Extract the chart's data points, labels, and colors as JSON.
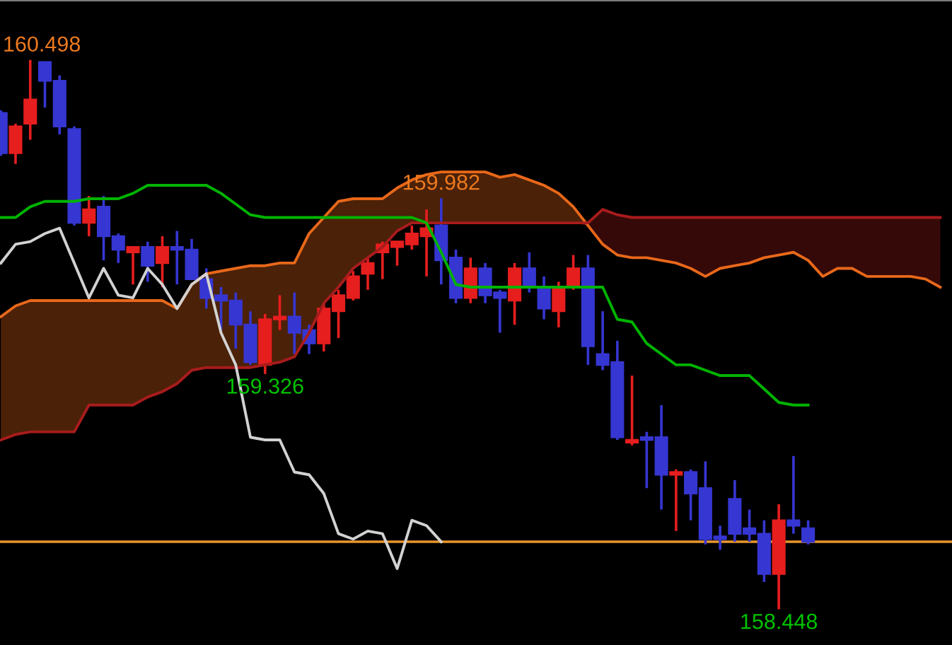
{
  "chart_data": {
    "type": "candlestick",
    "categories": [
      null,
      null,
      null,
      null,
      null,
      null,
      null,
      null,
      null,
      null,
      null,
      null,
      null,
      null,
      null,
      null,
      null,
      null,
      null,
      null,
      null,
      null,
      null,
      null,
      null,
      null,
      null,
      null,
      null,
      null,
      null,
      null,
      null,
      null,
      null,
      null,
      null,
      null,
      null,
      null,
      null,
      null,
      null,
      null,
      null,
      null,
      null,
      null,
      null,
      null,
      null,
      null,
      null,
      null,
      null,
      null,
      null,
      null,
      null,
      null,
      null,
      null,
      null,
      null,
      null
    ],
    "ohlc": [
      [
        160.3,
        160.31,
        160.14,
        160.15
      ],
      [
        160.15,
        160.26,
        160.11,
        160.25
      ],
      [
        160.26,
        160.498,
        160.2,
        160.35
      ],
      [
        160.49,
        160.49,
        160.32,
        160.42
      ],
      [
        160.42,
        160.44,
        160.22,
        160.25
      ],
      [
        160.24,
        160.25,
        159.88,
        159.89
      ],
      [
        159.89,
        159.99,
        159.84,
        159.94
      ],
      [
        159.95,
        159.99,
        159.75,
        159.84
      ],
      [
        159.84,
        159.85,
        159.74,
        159.79
      ],
      [
        159.78,
        159.8,
        159.66,
        159.8
      ],
      [
        159.8,
        159.82,
        159.67,
        159.73
      ],
      [
        159.74,
        159.84,
        159.65,
        159.8
      ],
      [
        159.8,
        159.86,
        159.66,
        159.79
      ],
      [
        159.79,
        159.83,
        159.68,
        159.68
      ],
      [
        159.68,
        159.72,
        159.57,
        159.61
      ],
      [
        159.62,
        159.65,
        159.49,
        159.6
      ],
      [
        159.6,
        159.63,
        159.42,
        159.51
      ],
      [
        159.51,
        159.56,
        159.36,
        159.37
      ],
      [
        159.36,
        159.55,
        159.326,
        159.53
      ],
      [
        159.53,
        159.62,
        159.49,
        159.54
      ],
      [
        159.54,
        159.63,
        159.4,
        159.48
      ],
      [
        159.49,
        159.51,
        159.4,
        159.44
      ],
      [
        159.44,
        159.59,
        159.41,
        159.57
      ],
      [
        159.56,
        159.64,
        159.46,
        159.62
      ],
      [
        159.61,
        159.71,
        159.6,
        159.69
      ],
      [
        159.7,
        159.76,
        159.64,
        159.74
      ],
      [
        159.78,
        159.82,
        159.68,
        159.81
      ],
      [
        159.8,
        159.82,
        159.73,
        159.82
      ],
      [
        159.81,
        159.88,
        159.79,
        159.85
      ],
      [
        159.84,
        159.94,
        159.69,
        159.87
      ],
      [
        159.88,
        159.982,
        159.66,
        159.75
      ],
      [
        159.76,
        159.79,
        159.59,
        159.61
      ],
      [
        159.61,
        159.76,
        159.59,
        159.72
      ],
      [
        159.72,
        159.74,
        159.59,
        159.62
      ],
      [
        159.63,
        159.64,
        159.48,
        159.61
      ],
      [
        159.6,
        159.74,
        159.51,
        159.72
      ],
      [
        159.72,
        159.78,
        159.63,
        159.65
      ],
      [
        159.65,
        159.69,
        159.53,
        159.57
      ],
      [
        159.56,
        159.67,
        159.5,
        159.65
      ],
      [
        159.65,
        159.77,
        159.64,
        159.72
      ],
      [
        159.72,
        159.77,
        159.36,
        159.43
      ],
      [
        159.4,
        159.56,
        159.34,
        159.36
      ],
      [
        159.37,
        159.45,
        159.08,
        159.09
      ],
      [
        159.07,
        159.32,
        159.06,
        159.08
      ],
      [
        159.09,
        159.11,
        158.9,
        159.08
      ],
      [
        159.09,
        159.21,
        158.82,
        158.95
      ],
      [
        158.95,
        158.97,
        158.74,
        158.96
      ],
      [
        158.96,
        158.97,
        158.78,
        158.88
      ],
      [
        158.9,
        159.0,
        158.69,
        158.71
      ],
      [
        158.72,
        158.76,
        158.67,
        158.71
      ],
      [
        158.86,
        158.93,
        158.7,
        158.73
      ],
      [
        158.75,
        158.82,
        158.7,
        158.73
      ],
      [
        158.73,
        158.78,
        158.55,
        158.58
      ],
      [
        158.58,
        158.84,
        158.448,
        158.78
      ],
      [
        158.78,
        159.02,
        158.73,
        158.76
      ],
      [
        158.75,
        158.78,
        158.69,
        158.7
      ],
      null,
      null,
      null,
      null,
      null,
      null,
      null,
      null,
      null
    ],
    "colors": [
      "#3636d2",
      "#e61e1e",
      "#e61e1e",
      "#3636d2",
      "#3636d2",
      "#3636d2",
      "#e61e1e",
      "#3636d2",
      "#3636d2",
      "#e61e1e",
      "#3636d2",
      "#e61e1e",
      "#3636d2",
      "#3636d2",
      "#3636d2",
      "#3636d2",
      "#3636d2",
      "#3636d2",
      "#e61e1e",
      "#e61e1e",
      "#3636d2",
      "#3636d2",
      "#e61e1e",
      "#e61e1e",
      "#e61e1e",
      "#e61e1e",
      "#e61e1e",
      "#e61e1e",
      "#e61e1e",
      "#e61e1e",
      "#3636d2",
      "#3636d2",
      "#e61e1e",
      "#3636d2",
      "#3636d2",
      "#e61e1e",
      "#3636d2",
      "#3636d2",
      "#e61e1e",
      "#e61e1e",
      "#3636d2",
      "#3636d2",
      "#3636d2",
      "#e61e1e",
      "#3636d2",
      "#3636d2",
      "#e61e1e",
      "#3636d2",
      "#3636d2",
      "#3636d2",
      "#3636d2",
      "#3636d2",
      "#3636d2",
      "#e61e1e",
      "#3636d2",
      "#3636d2",
      null,
      null,
      null,
      null,
      null,
      null,
      null,
      null,
      null
    ],
    "series": [
      {
        "type": "line",
        "color": "#e8681a",
        "values": [
          159.54,
          159.58,
          159.6,
          159.6,
          159.6,
          159.6,
          159.6,
          159.6,
          159.6,
          159.6,
          159.6,
          159.6,
          159.57,
          159.66,
          159.7,
          159.71,
          159.72,
          159.73,
          159.73,
          159.74,
          159.74,
          159.85,
          159.91,
          159.97,
          159.98,
          159.98,
          159.98,
          160.02,
          160.05,
          160.07,
          160.08,
          160.08,
          160.08,
          160.08,
          160.06,
          160.07,
          160.05,
          160.03,
          160.0,
          159.95,
          159.88,
          159.81,
          159.77,
          159.76,
          159.76,
          159.75,
          159.74,
          159.72,
          159.69,
          159.72,
          159.73,
          159.74,
          159.76,
          159.77,
          159.78,
          159.75,
          159.69,
          159.72,
          159.72,
          159.69,
          159.69,
          159.69,
          159.69,
          159.68,
          159.65
        ],
        "lower": [
          159.08,
          159.1,
          159.11,
          159.11,
          159.11,
          159.11,
          159.21,
          159.21,
          159.21,
          159.21,
          159.24,
          159.26,
          159.29,
          159.34,
          159.35,
          159.35,
          159.35,
          159.35,
          159.36,
          159.37,
          159.39,
          159.48,
          159.59,
          159.65,
          159.72,
          159.76,
          159.8,
          159.86,
          159.89,
          159.89,
          159.89,
          159.89,
          159.89,
          159.89,
          159.89,
          159.89,
          159.89,
          159.89,
          159.89,
          159.89,
          159.88,
          159.81,
          159.77,
          159.76,
          159.76,
          159.75,
          159.74,
          159.72,
          159.69,
          159.72,
          159.73,
          159.74,
          159.76,
          159.77,
          159.78,
          159.75,
          159.69,
          159.72,
          159.72,
          159.69,
          159.69,
          159.69,
          159.69,
          159.68,
          159.65
        ],
        "upper": [
          159.54,
          159.58,
          159.6,
          159.6,
          159.6,
          159.6,
          159.6,
          159.6,
          159.6,
          159.6,
          159.6,
          159.6,
          159.57,
          159.66,
          159.7,
          159.71,
          159.72,
          159.73,
          159.73,
          159.74,
          159.74,
          159.85,
          159.91,
          159.97,
          159.98,
          159.98,
          159.98,
          160.02,
          160.05,
          160.07,
          160.08,
          160.08,
          160.08,
          160.08,
          160.06,
          160.07,
          160.05,
          160.03,
          160.0,
          159.95,
          159.88,
          159.81,
          159.77,
          159.76,
          159.76,
          159.75,
          159.74,
          159.72,
          159.69,
          159.72,
          159.73,
          159.74,
          159.76,
          159.77,
          159.78,
          159.75,
          159.69,
          159.72,
          159.72,
          159.69,
          159.69,
          159.69,
          159.69,
          159.68,
          159.65
        ]
      },
      {
        "type": "line",
        "color": "#a81c1c",
        "values": [
          159.08,
          159.1,
          159.11,
          159.11,
          159.11,
          159.11,
          159.21,
          159.21,
          159.21,
          159.21,
          159.24,
          159.26,
          159.29,
          159.34,
          159.35,
          159.35,
          159.35,
          159.35,
          159.36,
          159.37,
          159.39,
          159.48,
          159.59,
          159.65,
          159.72,
          159.76,
          159.8,
          159.86,
          159.89,
          159.89,
          159.89,
          159.89,
          159.89,
          159.89,
          159.89,
          159.89,
          159.89,
          159.89,
          159.89,
          159.89,
          159.89,
          159.94,
          159.92,
          159.91,
          159.91,
          159.91,
          159.91,
          159.91,
          159.91,
          159.91,
          159.91,
          159.91,
          159.91,
          159.91,
          159.91,
          159.91,
          159.91,
          159.91,
          159.91,
          159.91,
          159.91,
          159.91,
          159.91,
          159.91,
          159.91
        ],
        "lower": [
          159.08,
          159.1,
          159.11,
          159.11,
          159.11,
          159.11,
          159.21,
          159.21,
          159.21,
          159.21,
          159.24,
          159.26,
          159.29,
          159.34,
          159.35,
          159.35,
          159.35,
          159.35,
          159.36,
          159.37,
          159.39,
          159.48,
          159.59,
          159.65,
          159.72,
          159.76,
          159.8,
          159.86,
          159.89,
          159.89,
          159.89,
          159.89,
          159.89,
          159.89,
          159.89,
          159.89,
          159.89,
          159.89,
          159.89,
          159.89,
          159.88,
          159.81,
          159.77,
          159.76,
          159.76,
          159.75,
          159.74,
          159.72,
          159.69,
          159.72,
          159.73,
          159.74,
          159.76,
          159.77,
          159.78,
          159.75,
          159.69,
          159.72,
          159.72,
          159.69,
          159.69,
          159.69,
          159.69,
          159.68,
          159.65
        ],
        "upper": [
          159.08,
          159.1,
          159.11,
          159.11,
          159.11,
          159.11,
          159.21,
          159.21,
          159.21,
          159.21,
          159.24,
          159.26,
          159.29,
          159.34,
          159.35,
          159.35,
          159.35,
          159.35,
          159.36,
          159.37,
          159.39,
          159.48,
          159.59,
          159.65,
          159.72,
          159.76,
          159.8,
          159.86,
          159.89,
          159.89,
          159.89,
          159.89,
          159.89,
          159.89,
          159.89,
          159.89,
          159.89,
          159.89,
          159.89,
          159.89,
          159.89,
          159.94,
          159.92,
          159.91,
          159.91,
          159.91,
          159.91,
          159.91,
          159.91,
          159.91,
          159.91,
          159.91,
          159.91,
          159.91,
          159.91,
          159.91,
          159.91,
          159.91,
          159.91,
          159.91,
          159.91,
          159.91,
          159.91,
          159.91,
          159.91
        ]
      },
      {
        "type": "line",
        "color": "#00b400",
        "values": [
          159.91,
          159.91,
          159.95,
          159.97,
          159.97,
          159.97,
          159.98,
          159.98,
          159.98,
          160.0,
          160.03,
          160.03,
          160.03,
          160.03,
          160.03,
          160.0,
          159.96,
          159.92,
          159.91,
          159.91,
          159.91,
          159.91,
          159.91,
          159.91,
          159.91,
          159.91,
          159.91,
          159.91,
          159.91,
          159.89,
          159.78,
          159.66,
          159.65,
          159.65,
          159.65,
          159.65,
          159.65,
          159.65,
          159.65,
          159.65,
          159.65,
          159.65,
          159.53,
          159.52,
          159.44,
          159.4,
          159.36,
          159.36,
          159.34,
          159.32,
          159.32,
          159.32,
          159.27,
          159.22,
          159.21,
          159.21,
          null,
          null,
          null,
          null,
          null,
          null,
          null,
          null,
          null
        ]
      },
      {
        "type": "line",
        "color": "#d2d2d2",
        "values": [
          159.74,
          159.81,
          159.82,
          159.85,
          159.87,
          159.74,
          159.61,
          159.72,
          159.62,
          159.61,
          159.72,
          159.66,
          159.57,
          159.66,
          159.7,
          159.48,
          159.36,
          159.09,
          159.08,
          159.08,
          158.96,
          158.95,
          158.88,
          158.73,
          158.71,
          158.74,
          158.73,
          158.6,
          158.78,
          158.76,
          158.7,
          null,
          null,
          null,
          null,
          null,
          null,
          null,
          null,
          null,
          null,
          null,
          null,
          null,
          null,
          null,
          null,
          null,
          null,
          null,
          null,
          null,
          null,
          null,
          null,
          null,
          null,
          null,
          null,
          null,
          null,
          null,
          null,
          null,
          null
        ]
      }
    ],
    "ref_lines": [
      {
        "axis": "y",
        "value": 158.7,
        "color": "#e8962e"
      }
    ],
    "annotations": [
      {
        "text": "160.498",
        "y": 160.498
      },
      {
        "text": "159.982",
        "y": 159.982
      },
      {
        "text": "159.326",
        "y": 159.326
      },
      {
        "text": "158.448",
        "y": 158.448
      }
    ]
  }
}
